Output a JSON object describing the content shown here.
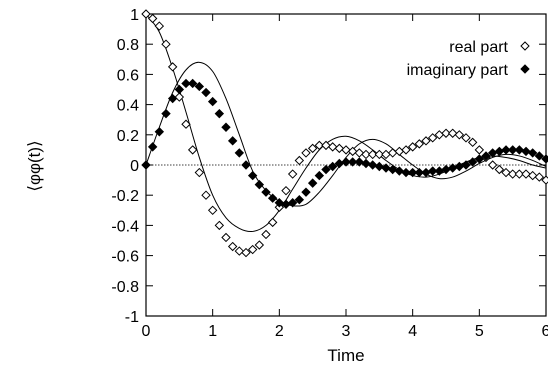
{
  "chart_data": {
    "type": "scatter",
    "title": "",
    "xlabel": "Time",
    "ylabel": "⟨φφ(t)⟩",
    "xlim": [
      0,
      6
    ],
    "ylim": [
      -1,
      1
    ],
    "xticks": [
      "0",
      "1",
      "2",
      "3",
      "4",
      "5",
      "6"
    ],
    "yticks": [
      "1",
      "0.8",
      "0.6",
      "0.4",
      "0.2",
      "0",
      "-0.2",
      "-0.4",
      "-0.6",
      "-0.8",
      "-1"
    ],
    "grid": false,
    "legend_position": "top-right",
    "zero_line": true,
    "series": [
      {
        "name": "real part",
        "marker": "open-diamond",
        "x": [
          0.0,
          0.1,
          0.2,
          0.3,
          0.4,
          0.5,
          0.6,
          0.7,
          0.8,
          0.9,
          1.0,
          1.1,
          1.2,
          1.3,
          1.4,
          1.5,
          1.6,
          1.7,
          1.8,
          1.9,
          2.0,
          2.1,
          2.2,
          2.3,
          2.4,
          2.5,
          2.6,
          2.7,
          2.8,
          2.9,
          3.0,
          3.1,
          3.2,
          3.3,
          3.4,
          3.5,
          3.6,
          3.7,
          3.8,
          3.9,
          4.0,
          4.1,
          4.2,
          4.3,
          4.4,
          4.5,
          4.6,
          4.7,
          4.8,
          4.9,
          5.0,
          5.1,
          5.2,
          5.3,
          5.4,
          5.5,
          5.6,
          5.7,
          5.8,
          5.9,
          6.0
        ],
        "y": [
          1.0,
          0.97,
          0.92,
          0.8,
          0.65,
          0.45,
          0.27,
          0.1,
          -0.05,
          -0.2,
          -0.3,
          -0.4,
          -0.48,
          -0.54,
          -0.57,
          -0.58,
          -0.56,
          -0.53,
          -0.46,
          -0.38,
          -0.28,
          -0.17,
          -0.06,
          0.03,
          0.08,
          0.11,
          0.13,
          0.13,
          0.12,
          0.11,
          0.1,
          0.09,
          0.08,
          0.07,
          0.07,
          0.07,
          0.07,
          0.08,
          0.09,
          0.1,
          0.12,
          0.14,
          0.16,
          0.18,
          0.2,
          0.21,
          0.21,
          0.2,
          0.18,
          0.15,
          0.1,
          0.05,
          0.0,
          -0.03,
          -0.05,
          -0.06,
          -0.06,
          -0.06,
          -0.07,
          -0.08,
          -0.1
        ]
      },
      {
        "name": "imaginary part",
        "marker": "filled-diamond",
        "x": [
          0.0,
          0.1,
          0.2,
          0.3,
          0.4,
          0.5,
          0.6,
          0.7,
          0.8,
          0.9,
          1.0,
          1.1,
          1.2,
          1.3,
          1.4,
          1.5,
          1.6,
          1.7,
          1.8,
          1.9,
          2.0,
          2.1,
          2.2,
          2.3,
          2.4,
          2.5,
          2.6,
          2.7,
          2.8,
          2.9,
          3.0,
          3.1,
          3.2,
          3.3,
          3.4,
          3.5,
          3.6,
          3.7,
          3.8,
          3.9,
          4.0,
          4.1,
          4.2,
          4.3,
          4.4,
          4.5,
          4.6,
          4.7,
          4.8,
          4.9,
          5.0,
          5.1,
          5.2,
          5.3,
          5.4,
          5.5,
          5.6,
          5.7,
          5.8,
          5.9,
          6.0
        ],
        "y": [
          0.0,
          0.12,
          0.22,
          0.34,
          0.44,
          0.5,
          0.54,
          0.54,
          0.52,
          0.48,
          0.42,
          0.34,
          0.25,
          0.16,
          0.08,
          0.0,
          -0.07,
          -0.13,
          -0.18,
          -0.22,
          -0.25,
          -0.26,
          -0.25,
          -0.23,
          -0.18,
          -0.12,
          -0.07,
          -0.03,
          -0.01,
          0.01,
          0.02,
          0.02,
          0.02,
          0.01,
          0.0,
          -0.01,
          -0.02,
          -0.03,
          -0.04,
          -0.05,
          -0.05,
          -0.05,
          -0.05,
          -0.04,
          -0.04,
          -0.03,
          -0.02,
          -0.01,
          0.0,
          0.02,
          0.04,
          0.06,
          0.08,
          0.09,
          0.1,
          0.1,
          0.1,
          0.09,
          0.08,
          0.06,
          0.04
        ]
      },
      {
        "name": "",
        "marker": "line",
        "x": [
          0.0,
          0.2,
          0.4,
          0.6,
          0.8,
          1.0,
          1.2,
          1.4,
          1.6,
          1.8,
          2.0,
          2.2,
          2.4,
          2.6,
          2.8,
          3.0,
          3.2,
          3.4,
          3.6,
          3.8,
          4.0,
          4.2,
          4.4,
          4.6,
          4.8,
          5.0,
          5.2,
          5.4,
          5.6,
          5.8,
          6.0
        ],
        "y": [
          1.0,
          0.88,
          0.64,
          0.35,
          0.05,
          -0.2,
          -0.35,
          -0.42,
          -0.44,
          -0.4,
          -0.3,
          -0.16,
          -0.02,
          0.1,
          0.17,
          0.19,
          0.16,
          0.1,
          0.03,
          -0.03,
          -0.07,
          -0.08,
          -0.06,
          -0.02,
          0.02,
          0.05,
          0.06,
          0.05,
          0.03,
          0.0,
          -0.02
        ]
      },
      {
        "name": "",
        "marker": "line",
        "x": [
          0.0,
          0.2,
          0.4,
          0.6,
          0.8,
          1.0,
          1.2,
          1.4,
          1.6,
          1.8,
          2.0,
          2.2,
          2.4,
          2.6,
          2.8,
          3.0,
          3.2,
          3.4,
          3.6,
          3.8,
          4.0,
          4.2,
          4.4,
          4.6,
          4.8,
          5.0,
          5.2,
          5.4,
          5.6,
          5.8,
          6.0
        ],
        "y": [
          0.0,
          0.25,
          0.48,
          0.63,
          0.68,
          0.62,
          0.44,
          0.2,
          -0.04,
          -0.17,
          -0.24,
          -0.27,
          -0.26,
          -0.18,
          -0.07,
          0.05,
          0.14,
          0.17,
          0.14,
          0.07,
          0.0,
          -0.06,
          -0.09,
          -0.08,
          -0.04,
          0.01,
          0.05,
          0.07,
          0.06,
          0.03,
          -0.01
        ]
      }
    ]
  }
}
